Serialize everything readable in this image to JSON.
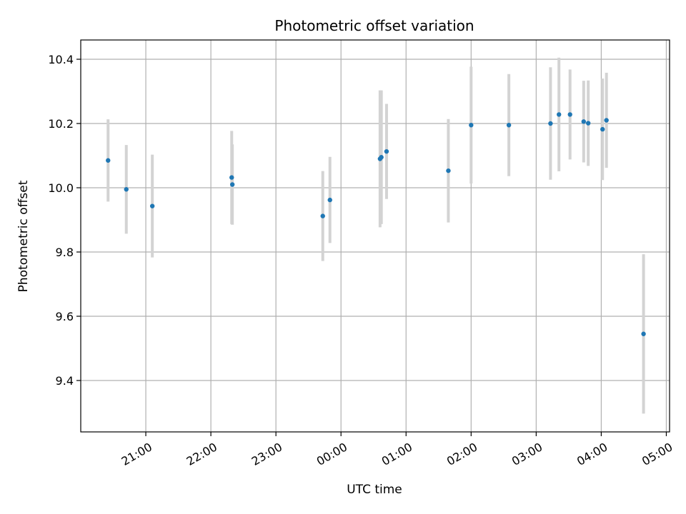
{
  "chart_data": {
    "type": "scatter",
    "title": "Photometric offset variation",
    "xlabel": "UTC time",
    "ylabel": "Photometric offset",
    "x_unit": "hours (UTC, from 20:00 on first night; values beyond 24 are the next day)",
    "xlim": [
      20.0,
      29.05
    ],
    "ylim": [
      9.24,
      10.46
    ],
    "x_ticks": [
      {
        "value": 21,
        "label": "21:00"
      },
      {
        "value": 22,
        "label": "22:00"
      },
      {
        "value": 23,
        "label": "23:00"
      },
      {
        "value": 24,
        "label": "00:00"
      },
      {
        "value": 25,
        "label": "01:00"
      },
      {
        "value": 26,
        "label": "02:00"
      },
      {
        "value": 27,
        "label": "03:00"
      },
      {
        "value": 28,
        "label": "04:00"
      },
      {
        "value": 29,
        "label": "05:00"
      }
    ],
    "y_ticks": [
      {
        "value": 9.4,
        "label": "9.4"
      },
      {
        "value": 9.6,
        "label": "9.6"
      },
      {
        "value": 9.8,
        "label": "9.8"
      },
      {
        "value": 10.0,
        "label": "10.0"
      },
      {
        "value": 10.2,
        "label": "10.2"
      },
      {
        "value": 10.4,
        "label": "10.4"
      }
    ],
    "grid": true,
    "point_color": "#1f77b4",
    "errorbar_color": "#d3d3d3",
    "points": [
      {
        "x": 20.42,
        "y": 10.085,
        "err": 0.128
      },
      {
        "x": 20.7,
        "y": 9.995,
        "err": 0.138
      },
      {
        "x": 21.1,
        "y": 9.943,
        "err": 0.16
      },
      {
        "x": 22.32,
        "y": 10.032,
        "err": 0.145
      },
      {
        "x": 22.33,
        "y": 10.01,
        "err": 0.125
      },
      {
        "x": 23.72,
        "y": 9.912,
        "err": 0.14
      },
      {
        "x": 23.83,
        "y": 9.962,
        "err": 0.134
      },
      {
        "x": 24.6,
        "y": 10.09,
        "err": 0.213
      },
      {
        "x": 24.62,
        "y": 10.095,
        "err": 0.208
      },
      {
        "x": 24.7,
        "y": 10.113,
        "err": 0.148
      },
      {
        "x": 25.65,
        "y": 10.053,
        "err": 0.161
      },
      {
        "x": 26.0,
        "y": 10.195,
        "err": 0.182
      },
      {
        "x": 26.58,
        "y": 10.195,
        "err": 0.159
      },
      {
        "x": 27.22,
        "y": 10.2,
        "err": 0.175
      },
      {
        "x": 27.35,
        "y": 10.228,
        "err": 0.177
      },
      {
        "x": 27.52,
        "y": 10.228,
        "err": 0.14
      },
      {
        "x": 27.73,
        "y": 10.206,
        "err": 0.127
      },
      {
        "x": 27.8,
        "y": 10.201,
        "err": 0.133
      },
      {
        "x": 28.02,
        "y": 10.182,
        "err": 0.158
      },
      {
        "x": 28.08,
        "y": 10.21,
        "err": 0.148
      },
      {
        "x": 28.65,
        "y": 9.545,
        "err": 0.248
      }
    ]
  }
}
